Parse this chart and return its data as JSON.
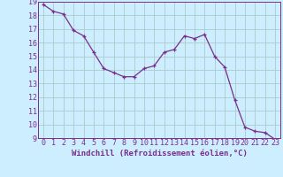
{
  "x": [
    0,
    1,
    2,
    3,
    4,
    5,
    6,
    7,
    8,
    9,
    10,
    11,
    12,
    13,
    14,
    15,
    16,
    17,
    18,
    19,
    20,
    21,
    22,
    23
  ],
  "y": [
    18.8,
    18.3,
    18.1,
    16.9,
    16.5,
    15.3,
    14.1,
    13.8,
    13.5,
    13.5,
    14.1,
    14.3,
    15.3,
    15.5,
    16.5,
    16.3,
    16.6,
    15.0,
    14.2,
    11.8,
    9.8,
    9.5,
    9.4,
    8.9
  ],
  "line_color": "#7b2d8b",
  "marker_color": "#7b2d8b",
  "bg_color": "#cceeff",
  "grid_color": "#aacccc",
  "xlabel": "Windchill (Refroidissement éolien,°C)",
  "ylim": [
    9,
    19
  ],
  "xlim": [
    -0.5,
    23.5
  ],
  "yticks": [
    9,
    10,
    11,
    12,
    13,
    14,
    15,
    16,
    17,
    18,
    19
  ],
  "xticks": [
    0,
    1,
    2,
    3,
    4,
    5,
    6,
    7,
    8,
    9,
    10,
    11,
    12,
    13,
    14,
    15,
    16,
    17,
    18,
    19,
    20,
    21,
    22,
    23
  ],
  "xlabel_fontsize": 6.5,
  "tick_fontsize": 6,
  "line_width": 0.9,
  "marker_size": 3
}
